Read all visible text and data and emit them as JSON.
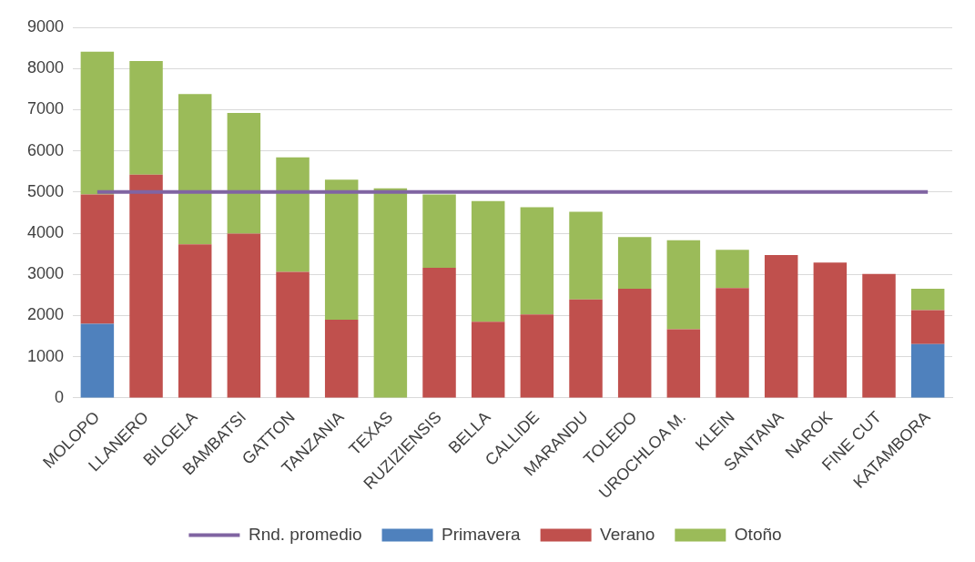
{
  "chart_data": {
    "type": "bar",
    "stacked": true,
    "categories": [
      "MOLOPO",
      "LLANERO",
      "BILOELA",
      "BAMBATSI",
      "GATTON",
      "TANZANIA",
      "TEXAS",
      "RUZIZIENSIS",
      "BELLA",
      "CALLIDE",
      "MARANDU",
      "TOLEDO",
      "UROCHLOA M.",
      "KLEIN",
      "SANTANA",
      "NAROK",
      "FINE CUT",
      "KATAMBORA"
    ],
    "series": [
      {
        "name": "Primavera",
        "color": "#4f81bd",
        "values": [
          1800,
          null,
          null,
          null,
          null,
          null,
          null,
          null,
          null,
          null,
          null,
          null,
          null,
          null,
          null,
          null,
          null,
          1310
        ]
      },
      {
        "name": "Verano",
        "color": "#c0504d",
        "values": [
          3140,
          5420,
          3730,
          3990,
          3060,
          1900,
          null,
          3160,
          1850,
          2030,
          2390,
          2650,
          1670,
          2670,
          3470,
          3290,
          3010,
          820
        ]
      },
      {
        "name": "Otoño",
        "color": "#9bbb59",
        "values": [
          3470,
          2760,
          3650,
          2930,
          2780,
          3400,
          5090,
          1780,
          2930,
          2600,
          2130,
          1260,
          2160,
          930,
          null,
          null,
          null,
          520
        ]
      },
      {
        "name": "Rnd. promedio",
        "type": "line",
        "color": "#8064a2",
        "values": [
          5000,
          5000,
          5000,
          5000,
          5000,
          5000,
          5000,
          5000,
          5000,
          5000,
          5000,
          5000,
          5000,
          5000,
          5000,
          5000,
          5000,
          5000
        ]
      }
    ],
    "ylim": [
      0,
      9000
    ],
    "yticks": [
      0,
      1000,
      2000,
      3000,
      4000,
      5000,
      6000,
      7000,
      8000,
      9000
    ],
    "grid": "y",
    "legend": "bottom",
    "marker": "none"
  }
}
